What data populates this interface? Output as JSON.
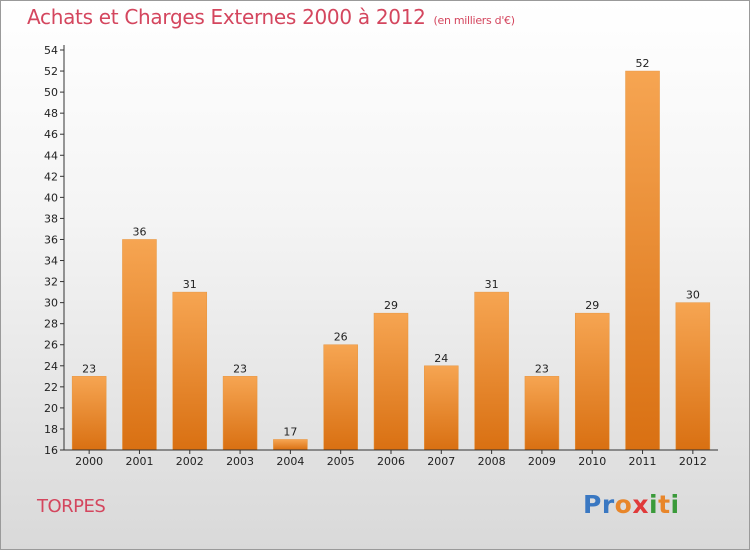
{
  "header": {
    "title": "Achats et Charges Externes 2000 à 2012",
    "subtitle": "(en milliers d'€)"
  },
  "commune": "TORPES",
  "logo": {
    "letters": [
      {
        "ch": "P",
        "color": "#3a78c2"
      },
      {
        "ch": "r",
        "color": "#3a78c2"
      },
      {
        "ch": "o",
        "color": "#e8862a"
      },
      {
        "ch": "x",
        "color": "#e03a3a"
      },
      {
        "ch": "i",
        "color": "#3a9a3a"
      },
      {
        "ch": "t",
        "color": "#e8862a"
      },
      {
        "ch": "i",
        "color": "#3a9a3a"
      }
    ]
  },
  "colors": {
    "bar_top": "#f6a552",
    "bar_bottom": "#d97012",
    "accent": "#d4465e"
  },
  "chart_data": {
    "type": "bar",
    "title": "Achats et Charges Externes 2000 à 2012",
    "subtitle": "(en milliers d'€)",
    "categories": [
      "2000",
      "2001",
      "2002",
      "2003",
      "2004",
      "2005",
      "2006",
      "2007",
      "2008",
      "2009",
      "2010",
      "2011",
      "2012"
    ],
    "values": [
      23,
      36,
      31,
      23,
      17,
      26,
      29,
      24,
      31,
      23,
      29,
      52,
      30
    ],
    "ylim": [
      16,
      54
    ],
    "yticks": [
      16,
      18,
      20,
      22,
      24,
      26,
      28,
      30,
      32,
      34,
      36,
      38,
      40,
      42,
      44,
      46,
      48,
      50,
      52,
      54
    ],
    "grid": false,
    "xlabel": "",
    "ylabel": ""
  }
}
